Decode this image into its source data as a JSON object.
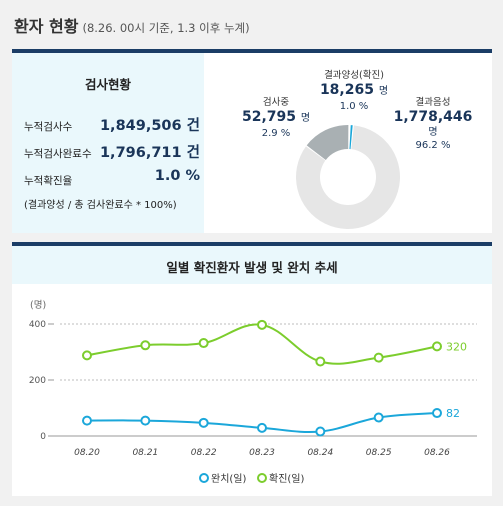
{
  "header": {
    "title": "환자 현황",
    "subtitle": "(8.26. 00시 기준, 1.3 이후 누계)"
  },
  "test_status": {
    "title": "검사현황",
    "rows": [
      {
        "label": "누적검사수",
        "value": "1,849,506 건"
      },
      {
        "label": "누적검사완료수",
        "value": "1,796,711 건"
      },
      {
        "label": "누적확진율",
        "value": "1.0 %"
      }
    ],
    "note": "(결과양성 / 총 검사완료수 * 100%)"
  },
  "donut": {
    "segments": [
      {
        "name": "검사중",
        "value": "52,795",
        "unit": "명",
        "percent": "2.9 %",
        "fraction": 0.029,
        "color": "#a9b0b3"
      },
      {
        "name": "결과양성(확진)",
        "value": "18,265",
        "unit": "명",
        "percent": "1.0 %",
        "fraction": 0.01,
        "color": "#19a7d9"
      },
      {
        "name": "결과음성",
        "value": "1,778,446",
        "unit": "명",
        "percent": "96.2 %",
        "fraction": 0.962,
        "color": "#e6e6e6"
      }
    ]
  },
  "chart_data": {
    "type": "line",
    "title": "일별 확진환자 발생 및 완치 추세",
    "ylabel": "(명)",
    "ylim": [
      0,
      400
    ],
    "yticks": [
      "0",
      "200",
      "400"
    ],
    "categories": [
      "08.20",
      "08.21",
      "08.22",
      "08.23",
      "08.24",
      "08.25",
      "08.26"
    ],
    "series": [
      {
        "name": "완치(일)",
        "values": [
          55,
          55,
          47,
          29,
          16,
          66,
          82
        ],
        "color": "#1ba7da",
        "end_label": "82"
      },
      {
        "name": "확진(일)",
        "values": [
          288,
          324,
          332,
          397,
          266,
          280,
          320
        ],
        "color": "#7ccd2d",
        "end_label": "320"
      }
    ],
    "legend": "bottom-center",
    "grid": "horizontal-dotted"
  }
}
